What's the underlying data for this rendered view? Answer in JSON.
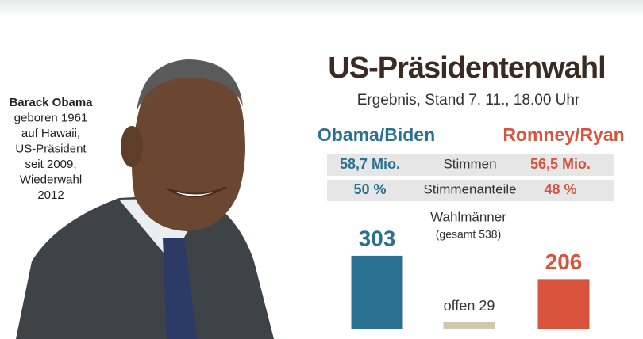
{
  "caption": [
    "Barack Obama",
    "geboren 1961",
    "auf Hawaii,",
    "US-Präsident",
    "seit 2009,",
    "Wiederwahl",
    "2012"
  ],
  "stats": [
    {
      "left": "58,7 Mio.",
      "label": "Stimmen",
      "right": "56,5 Mio."
    },
    {
      "left": "50 %",
      "label": "Stimmenanteile",
      "right": "48 %"
    }
  ],
  "chart_data": {
    "type": "bar",
    "title": "US-Präsidentenwahl",
    "subtitle": "Ergebnis, Stand 7. 11., 18.00 Uhr",
    "value_title": "Wahlmänner",
    "value_note": "(gesamt 538)",
    "categories": [
      "Obama/Biden",
      null,
      "Romney/Ryan"
    ],
    "values": [
      303,
      29,
      206
    ],
    "value_labels": [
      "303",
      "offen 29",
      "206"
    ],
    "colors": [
      "#2a7191",
      "#cfc7b0",
      "#d9533c"
    ],
    "label_colors": [
      "#2a7191",
      "#333333",
      "#d9533c"
    ]
  }
}
